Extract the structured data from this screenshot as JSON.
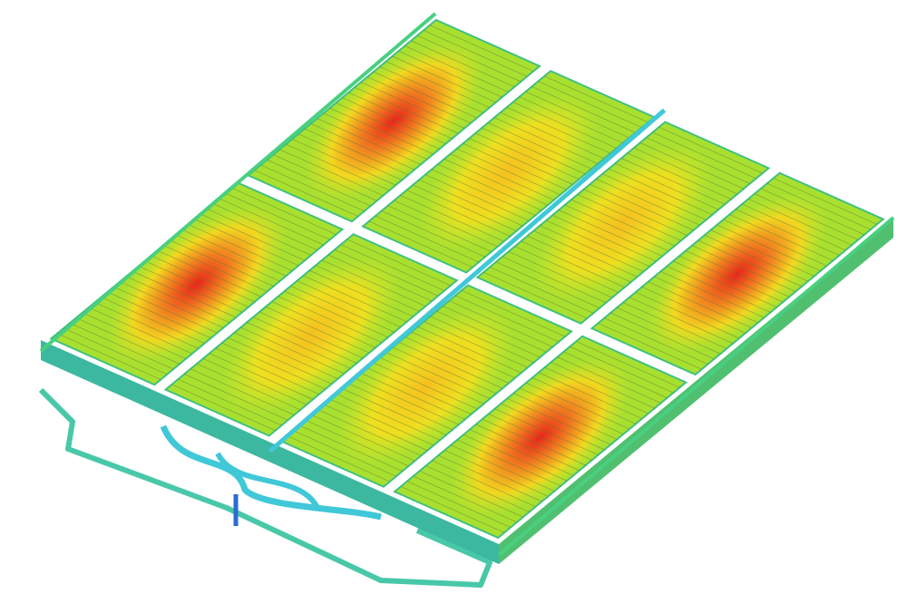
{
  "figure": {
    "description_visible_text": "",
    "colors": {
      "background": "#ffffff",
      "cool": "#3cc8a0",
      "mid": "#b8e632",
      "warm": "#f2e81e",
      "hot": "#e8261a",
      "pipe": "#40c8d8",
      "stripe": "#6a7a30"
    },
    "grid": {
      "columns": 4,
      "rows": 2
    },
    "hot_cells": [
      [
        0,
        0
      ],
      [
        0,
        1
      ],
      [
        3,
        0
      ],
      [
        3,
        1
      ]
    ]
  }
}
